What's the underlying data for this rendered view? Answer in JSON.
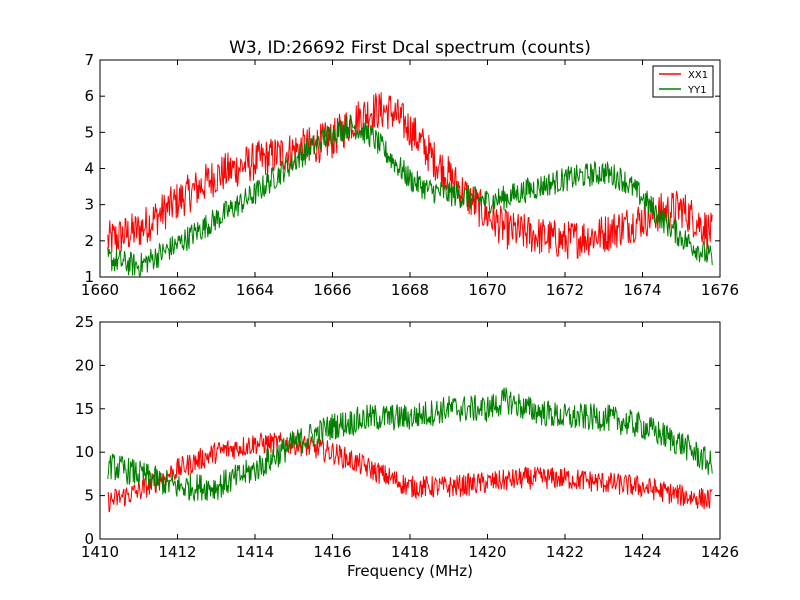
{
  "figure": {
    "title": "W3, ID:26692 First Dcal spectrum (counts)",
    "xlabel": "Frequency (MHz)"
  },
  "chart_data": [
    {
      "type": "line",
      "title": "W3, ID:26692 First Dcal spectrum (counts)",
      "xlabel": "",
      "ylabel": "",
      "xlim": [
        1660,
        1676
      ],
      "ylim": [
        1,
        7
      ],
      "xticks": [
        1660,
        1662,
        1664,
        1666,
        1668,
        1670,
        1672,
        1674,
        1676
      ],
      "yticks": [
        1,
        2,
        3,
        4,
        5,
        6,
        7
      ],
      "legend": {
        "placement": "top-right",
        "entries": [
          "XX1",
          "YY1"
        ]
      },
      "grid": false,
      "noise": [
        0.55,
        0.35
      ],
      "series": [
        {
          "name": "XX1",
          "color": "#ff0000",
          "x": [
            1660.2,
            1661.0,
            1662.0,
            1663.0,
            1664.0,
            1665.0,
            1666.0,
            1666.5,
            1667.0,
            1667.5,
            1668.0,
            1668.5,
            1669.0,
            1669.5,
            1670.0,
            1670.5,
            1671.0,
            1672.0,
            1673.0,
            1674.0,
            1674.5,
            1675.0,
            1675.8
          ],
          "y": [
            2.0,
            2.3,
            3.1,
            3.8,
            4.2,
            4.5,
            4.8,
            5.3,
            5.6,
            5.6,
            5.1,
            4.4,
            3.8,
            3.2,
            2.7,
            2.3,
            2.2,
            2.0,
            2.2,
            2.6,
            2.8,
            2.9,
            2.2
          ]
        },
        {
          "name": "YY1",
          "color": "#008000",
          "x": [
            1660.2,
            1661.0,
            1662.0,
            1663.0,
            1664.0,
            1665.0,
            1666.0,
            1666.5,
            1667.0,
            1667.5,
            1668.0,
            1668.5,
            1669.0,
            1669.5,
            1670.0,
            1670.5,
            1671.0,
            1672.0,
            1673.0,
            1673.5,
            1674.0,
            1674.5,
            1675.0,
            1675.8
          ],
          "y": [
            1.5,
            1.3,
            1.9,
            2.6,
            3.3,
            4.2,
            5.0,
            5.2,
            4.9,
            4.3,
            3.7,
            3.4,
            3.3,
            3.2,
            3.1,
            3.2,
            3.4,
            3.7,
            3.9,
            3.7,
            3.2,
            2.6,
            2.1,
            1.5
          ]
        }
      ]
    },
    {
      "type": "line",
      "title": "",
      "xlabel": "Frequency (MHz)",
      "ylabel": "",
      "xlim": [
        1410,
        1426
      ],
      "ylim": [
        0,
        25
      ],
      "xticks": [
        1410,
        1412,
        1414,
        1416,
        1418,
        1420,
        1422,
        1424,
        1426
      ],
      "yticks": [
        0,
        5,
        10,
        15,
        20,
        25
      ],
      "legend": null,
      "grid": false,
      "noise": [
        1.3,
        1.6
      ],
      "series": [
        {
          "name": "",
          "color": "#ff0000",
          "x": [
            1410.2,
            1411.0,
            1412.0,
            1413.0,
            1414.0,
            1415.0,
            1416.0,
            1416.5,
            1417.0,
            1417.5,
            1418.0,
            1419.0,
            1420.0,
            1421.0,
            1422.0,
            1423.0,
            1424.0,
            1425.0,
            1425.8
          ],
          "y": [
            4.3,
            5.5,
            8.0,
            10.0,
            11.0,
            11.0,
            10.0,
            9.0,
            8.0,
            7.0,
            6.0,
            6.0,
            6.5,
            7.0,
            7.0,
            6.5,
            6.0,
            5.0,
            4.5
          ]
        },
        {
          "name": "",
          "color": "#008000",
          "x": [
            1410.2,
            1411.0,
            1412.0,
            1413.0,
            1414.0,
            1415.0,
            1416.0,
            1417.0,
            1418.0,
            1419.0,
            1420.0,
            1420.5,
            1421.0,
            1422.0,
            1423.0,
            1424.0,
            1425.0,
            1425.8
          ],
          "y": [
            8.5,
            7.5,
            6.0,
            6.0,
            8.0,
            11.0,
            13.0,
            14.0,
            14.0,
            15.0,
            15.0,
            16.0,
            15.0,
            14.0,
            14.0,
            13.0,
            11.0,
            8.5
          ]
        }
      ]
    }
  ]
}
